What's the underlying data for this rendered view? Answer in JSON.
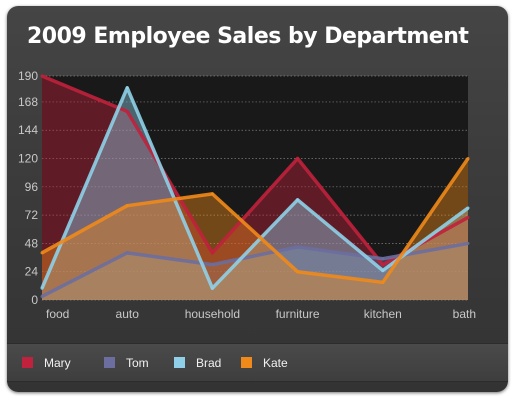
{
  "chart_data": {
    "type": "area",
    "title": "2009 Employee Sales by Department",
    "categories": [
      "food",
      "auto",
      "household",
      "furniture",
      "kitchen",
      "bath"
    ],
    "yticks": [
      0,
      24,
      48,
      72,
      96,
      120,
      144,
      168,
      190
    ],
    "ylim": [
      0,
      190
    ],
    "grid": true,
    "legend_position": "bottom",
    "series": [
      {
        "name": "Mary",
        "color": "#c0213c",
        "values": [
          190,
          160,
          40,
          120,
          30,
          70
        ]
      },
      {
        "name": "Tom",
        "color": "#6b6e9e",
        "values": [
          3,
          40,
          30,
          45,
          35,
          48
        ]
      },
      {
        "name": "Brad",
        "color": "#8fd0e8",
        "values": [
          10,
          180,
          10,
          85,
          25,
          78
        ]
      },
      {
        "name": "Kate",
        "color": "#ef8a1a",
        "values": [
          40,
          80,
          90,
          24,
          15,
          120
        ]
      }
    ]
  }
}
